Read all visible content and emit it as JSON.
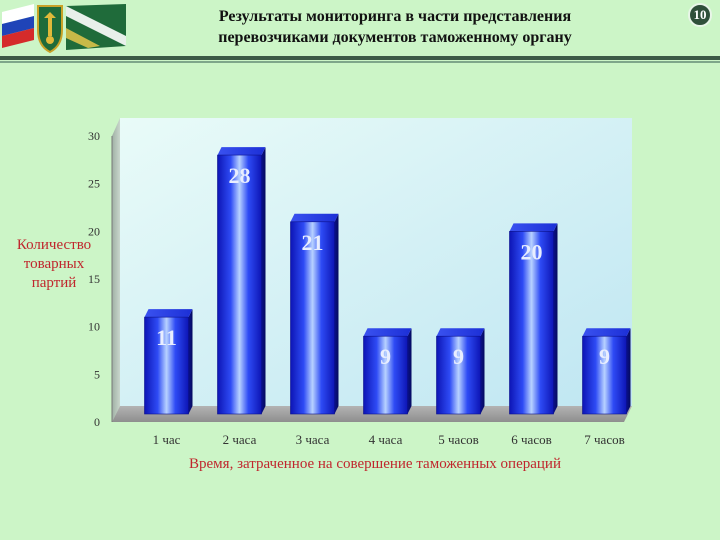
{
  "header": {
    "title_line1": "Результаты мониторинга в части представления",
    "title_line2": "перевозчиками документов таможенному органу",
    "page_number": "10"
  },
  "colors": {
    "background": "#ccf5c7",
    "bar": "#1a2be8",
    "label_red": "#c0262d",
    "header_rule": "#3c5a46"
  },
  "chart_data": {
    "type": "bar",
    "categories": [
      "1 час",
      "2 часа",
      "3 часа",
      "4 часа",
      "5 часов",
      "6 часов",
      "7 часов"
    ],
    "values": [
      11,
      28,
      21,
      9,
      9,
      20,
      9
    ],
    "xlabel": "Время, затраченное на совершение таможенных операций",
    "ylabel": "Количество товарных партий",
    "ylim": [
      0,
      30
    ],
    "yticks": [
      0,
      5,
      10,
      15,
      20,
      25,
      30
    ],
    "grid": false,
    "legend": "none"
  }
}
